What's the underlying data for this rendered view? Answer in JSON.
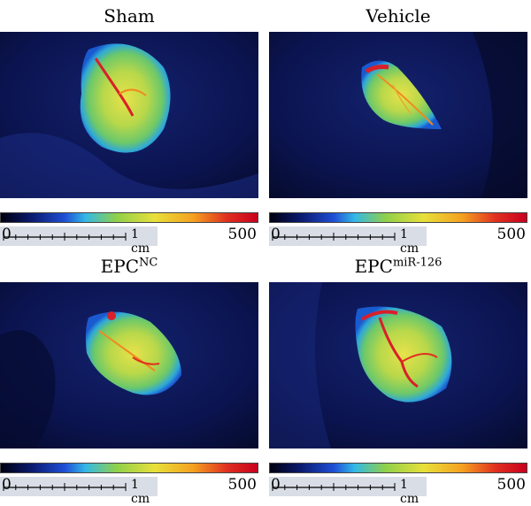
{
  "panels": [
    {
      "id": "sham",
      "title": "Sham",
      "title_sup": ""
    },
    {
      "id": "vehicle",
      "title": "Vehicle",
      "title_sup": ""
    },
    {
      "id": "epc-nc",
      "title": "EPC",
      "title_sup": "NC"
    },
    {
      "id": "epc-mir126",
      "title": "EPC",
      "title_sup": "miR-126"
    }
  ],
  "scale_bar": {
    "label": "1 cm"
  },
  "colorbar": {
    "min": "0",
    "max": "500",
    "colors": [
      "#000010",
      "#0a1a6e",
      "#1f4fd6",
      "#33b8e6",
      "#8fd04a",
      "#e8e03a",
      "#f4a020",
      "#e03020",
      "#c8001e"
    ]
  }
}
